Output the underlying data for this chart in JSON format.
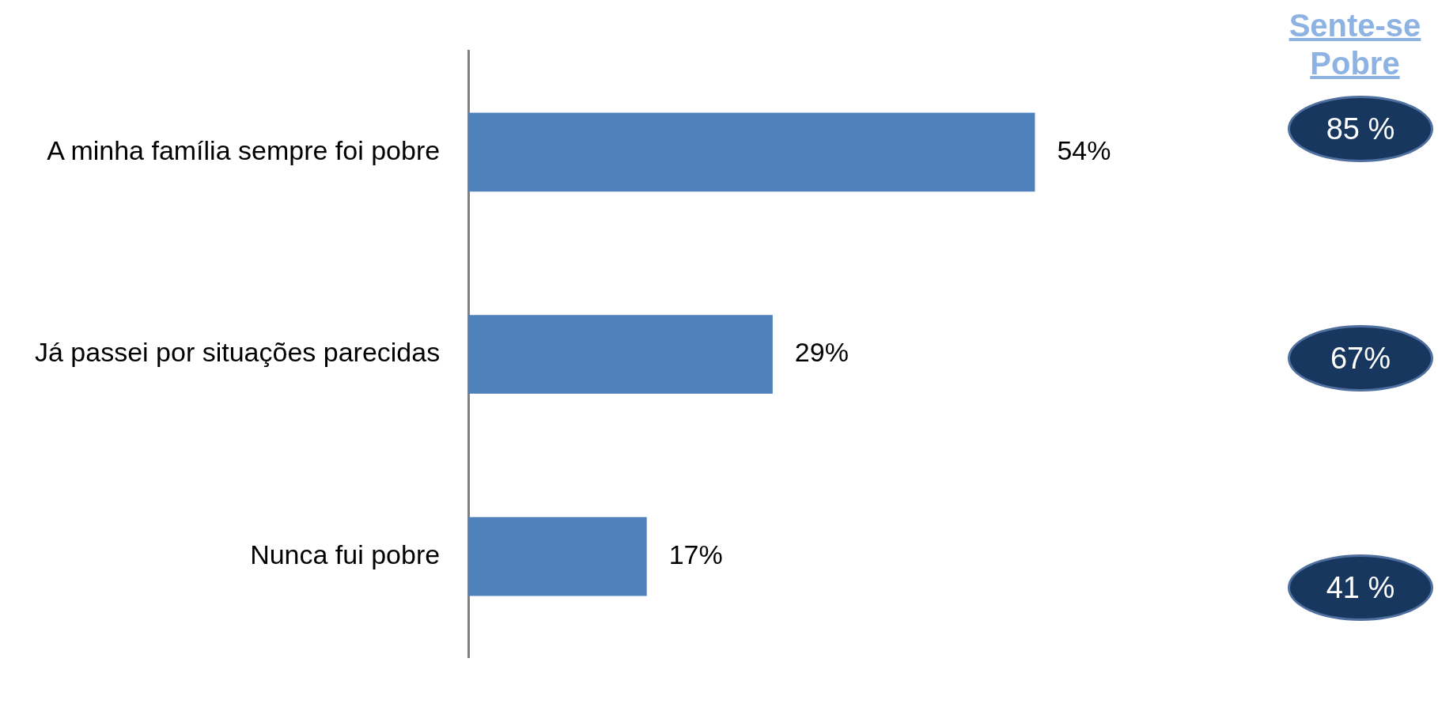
{
  "chart_data": {
    "type": "bar",
    "orientation": "horizontal",
    "categories": [
      "A minha família sempre foi pobre",
      "Já passei por situações parecidas",
      "Nunca fui pobre"
    ],
    "values": [
      54,
      29,
      17
    ],
    "color": "#4f81bd",
    "value_labels": [
      "54%",
      "29%",
      "17%"
    ],
    "tick_labels": "y",
    "legend": false,
    "annotations": [
      "Sente-se Pobre",
      "85 %",
      "67%",
      "41 %"
    ]
  }
}
